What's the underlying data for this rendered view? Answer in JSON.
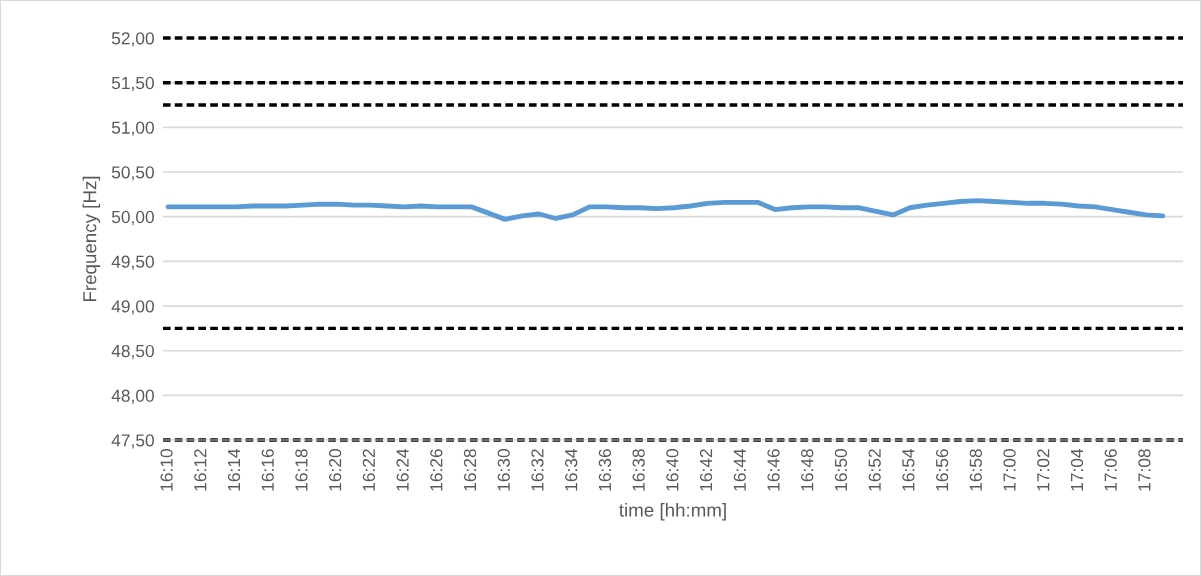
{
  "chart_data": {
    "type": "line",
    "xlabel": "time [hh:mm]",
    "ylabel": "Frequency [Hz]",
    "categories": [
      "16:10",
      null,
      "16:12",
      null,
      "16:14",
      null,
      "16:16",
      null,
      "16:18",
      null,
      "16:20",
      null,
      "16:22",
      null,
      "16:24",
      null,
      "16:26",
      null,
      "16:28",
      null,
      "16:30",
      null,
      "16:32",
      null,
      "16:34",
      null,
      "16:36",
      null,
      "16:38",
      null,
      "16:40",
      null,
      "16:42",
      null,
      "16:44",
      null,
      "16:46",
      null,
      "16:48",
      null,
      "16:50",
      null,
      "16:52",
      null,
      "16:54",
      null,
      "16:56",
      null,
      "16:58",
      null,
      "17:00",
      null,
      "17:02",
      null,
      "17:04",
      null,
      "17:06",
      null,
      "17:08",
      null
    ],
    "series": [
      {
        "color": "#5b9bd5",
        "values": [
          50.11,
          50.11,
          50.11,
          50.11,
          50.11,
          50.12,
          50.12,
          50.12,
          50.13,
          50.14,
          50.14,
          50.13,
          50.13,
          50.12,
          50.11,
          50.12,
          50.11,
          50.11,
          50.11,
          50.04,
          49.97,
          50.01,
          50.03,
          49.98,
          50.02,
          50.11,
          50.11,
          50.1,
          50.1,
          50.09,
          50.1,
          50.12,
          50.15,
          50.16,
          50.16,
          50.16,
          50.08,
          50.1,
          50.11,
          50.11,
          50.1,
          50.1,
          50.06,
          50.02,
          50.1,
          50.13,
          50.15,
          50.17,
          50.18,
          50.17,
          50.16,
          50.15,
          50.15,
          50.14,
          50.12,
          50.11,
          50.08,
          50.05,
          50.02,
          50.01
        ]
      }
    ],
    "ylim": [
      47.5,
      52.0
    ],
    "yticks": [
      {
        "value": 47.5,
        "label": "47,50"
      },
      {
        "value": 48.0,
        "label": "48,00"
      },
      {
        "value": 48.5,
        "label": "48,50"
      },
      {
        "value": 49.0,
        "label": "49,00"
      },
      {
        "value": 49.5,
        "label": "49,50"
      },
      {
        "value": 50.0,
        "label": "50,00"
      },
      {
        "value": 50.5,
        "label": "50,50"
      },
      {
        "value": 51.0,
        "label": "51,00"
      },
      {
        "value": 51.5,
        "label": "51,50"
      },
      {
        "value": 52.0,
        "label": "52,00"
      }
    ],
    "ref_lines": [
      {
        "axis": "y",
        "value": 52.0,
        "color": "#000000",
        "line_style": "dashed"
      },
      {
        "axis": "y",
        "value": 51.5,
        "color": "#000000",
        "line_style": "dashed"
      },
      {
        "axis": "y",
        "value": 51.25,
        "color": "#000000",
        "line_style": "dashed"
      },
      {
        "axis": "y",
        "value": 48.75,
        "color": "#000000",
        "line_style": "dashed"
      },
      {
        "axis": "y",
        "value": 47.5,
        "color": "#000000",
        "line_style": "dashed"
      }
    ],
    "grid": "y",
    "marker": "none",
    "line_style": "solid"
  }
}
